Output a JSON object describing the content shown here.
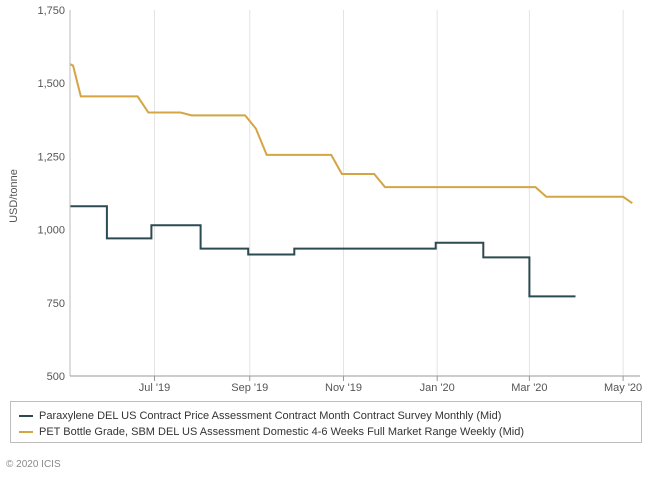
{
  "chart_data": {
    "type": "line",
    "title": "",
    "ylabel": "USD/tonne",
    "ylim": [
      500,
      1750
    ],
    "yticks": [
      500,
      750,
      1000,
      1250,
      1500,
      1750
    ],
    "ytick_labels": [
      "500",
      "750",
      "1,000",
      "1,250",
      "1,500",
      "1,750"
    ],
    "xlim": [
      "2019-05-07",
      "2020-05-12"
    ],
    "xticks": [
      "2019-07-01",
      "2019-09-01",
      "2019-11-01",
      "2020-01-01",
      "2020-03-01",
      "2020-05-01"
    ],
    "xtick_labels": [
      "Jul '19",
      "Sep '19",
      "Nov '19",
      "Jan '20",
      "Mar '20",
      "May '20"
    ],
    "grid": "vertical",
    "legend_position": "bottom",
    "series": [
      {
        "name": "Paraxylene DEL US Contract Price Assessment Contract Month Contract Survey Monthly (Mid)",
        "color": "#2c4a52",
        "step": true,
        "points": [
          [
            "2019-05-07",
            1080
          ],
          [
            "2019-05-31",
            970
          ],
          [
            "2019-06-29",
            1015
          ],
          [
            "2019-07-31",
            935
          ],
          [
            "2019-08-31",
            915
          ],
          [
            "2019-09-30",
            935
          ],
          [
            "2019-12-31",
            955
          ],
          [
            "2020-01-31",
            905
          ],
          [
            "2020-03-01",
            772
          ],
          [
            "2020-03-31",
            772
          ]
        ]
      },
      {
        "name": "PET Bottle Grade, SBM DEL US Assessment Domestic 4-6 Weeks Full Market Range Weekly (Mid)",
        "color": "#d4a545",
        "step": false,
        "points": [
          [
            "2019-05-07",
            1565
          ],
          [
            "2019-05-09",
            1560
          ],
          [
            "2019-05-14",
            1455
          ],
          [
            "2019-06-20",
            1455
          ],
          [
            "2019-06-27",
            1400
          ],
          [
            "2019-07-18",
            1400
          ],
          [
            "2019-07-25",
            1390
          ],
          [
            "2019-08-29",
            1390
          ],
          [
            "2019-09-05",
            1345
          ],
          [
            "2019-09-12",
            1255
          ],
          [
            "2019-10-24",
            1255
          ],
          [
            "2019-10-31",
            1190
          ],
          [
            "2019-11-21",
            1190
          ],
          [
            "2019-11-28",
            1145
          ],
          [
            "2020-03-05",
            1145
          ],
          [
            "2020-03-12",
            1112
          ],
          [
            "2020-05-01",
            1112
          ],
          [
            "2020-05-07",
            1090
          ]
        ]
      }
    ]
  },
  "copyright": "© 2020 ICIS"
}
